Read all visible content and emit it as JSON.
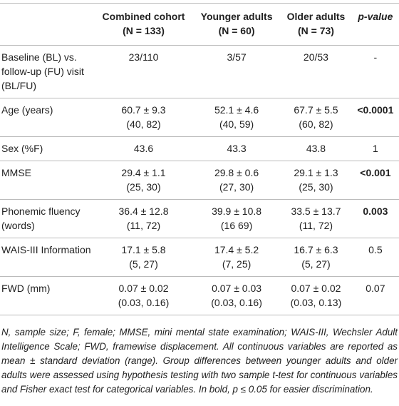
{
  "table": {
    "header": [
      {
        "name": "Combined cohort",
        "n": "(N = 133)"
      },
      {
        "name": "Younger adults",
        "n": "(N = 60)"
      },
      {
        "name": "Older adults",
        "n": "(N = 73)"
      },
      {
        "name": "p-value"
      }
    ],
    "rows": [
      {
        "label": "Baseline (BL) vs. follow-up (FU) visit (BL/FU)",
        "cells": [
          [
            "23/110"
          ],
          [
            "3/57"
          ],
          [
            "20/53"
          ],
          [
            "-"
          ]
        ],
        "p_bold": false
      },
      {
        "label": "Age (years)",
        "cells": [
          [
            "60.7 ± 9.3",
            "(40, 82)"
          ],
          [
            "52.1 ± 4.6",
            "(40, 59)"
          ],
          [
            "67.7 ± 5.5",
            "(60, 82)"
          ],
          [
            "<0.0001"
          ]
        ],
        "p_bold": true
      },
      {
        "label": "Sex (%F)",
        "cells": [
          [
            "43.6"
          ],
          [
            "43.3"
          ],
          [
            "43.8"
          ],
          [
            "1"
          ]
        ],
        "p_bold": false
      },
      {
        "label": "MMSE",
        "cells": [
          [
            "29.4 ± 1.1",
            "(25, 30)"
          ],
          [
            "29.8 ± 0.6",
            "(27, 30)"
          ],
          [
            "29.1 ± 1.3",
            "(25, 30)"
          ],
          [
            "<0.001"
          ]
        ],
        "p_bold": true
      },
      {
        "label": "Phonemic fluency (words)",
        "cells": [
          [
            "36.4 ± 12.8",
            "(11, 72)"
          ],
          [
            "39.9 ± 10.8",
            "(16 69)"
          ],
          [
            "33.5 ± 13.7",
            "(11, 72)"
          ],
          [
            "0.003"
          ]
        ],
        "p_bold": true
      },
      {
        "label": "WAIS-III Information",
        "cells": [
          [
            "17.1 ± 5.8",
            "(5, 27)"
          ],
          [
            "17.4 ± 5.2",
            "(7, 25)"
          ],
          [
            "16.7 ± 6.3",
            "(5, 27)"
          ],
          [
            "0.5"
          ]
        ],
        "p_bold": false
      },
      {
        "label": "FWD (mm)",
        "cells": [
          [
            "0.07 ± 0.02",
            "(0.03, 0.16)"
          ],
          [
            "0.07 ± 0.03",
            "(0.03, 0.16)"
          ],
          [
            "0.07 ± 0.02",
            "(0.03, 0.13)"
          ],
          [
            "0.07"
          ]
        ],
        "p_bold": false
      }
    ]
  },
  "footnote": "N, sample size; F, female; MMSE, mini mental state examination; WAIS-III, Wechsler Adult Intelligence Scale; FWD, framewise displacement. All continuous variables are reported as mean ± standard deviation (range). Group differences between younger adults and older adults were assessed using hypothesis testing with two sample t-test for continuous variables and Fisher exact test for categorical variables. In bold, p ≤ 0.05 for easier discrimination."
}
